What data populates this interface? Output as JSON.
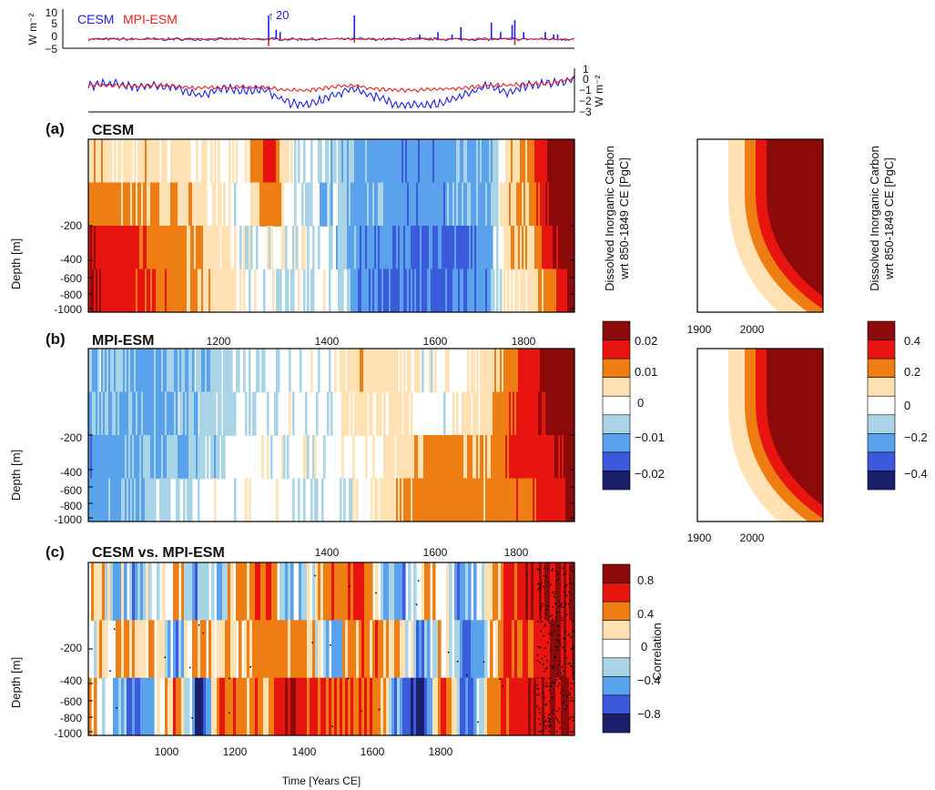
{
  "colors": {
    "cesm": "#1f1fe6",
    "mpi": "#e61f1f",
    "scale": [
      "#1a1f6b",
      "#3b5bdc",
      "#5aa2ec",
      "#a9d4e6",
      "#ffffff",
      "#ffe1b3",
      "#ee7d14",
      "#e8140f",
      "#8c0a0a"
    ]
  },
  "forcing_top": {
    "ylabel": "W m⁻²",
    "ticks": [
      "10",
      "5",
      "0",
      "−5"
    ],
    "legend": [
      "CESM",
      "MPI-ESM"
    ],
    "annotation": "20"
  },
  "forcing_bottom": {
    "ylabel": "W m⁻²",
    "ticks": [
      "1",
      "0",
      "−1",
      "−2",
      "−3"
    ]
  },
  "panels": [
    {
      "label": "(a)",
      "title": "CESM"
    },
    {
      "label": "(b)",
      "title": "MPI-ESM"
    },
    {
      "label": "(c)",
      "title": "CESM vs. MPI-ESM"
    }
  ],
  "depth_axis": {
    "label": "Depth [m]",
    "ticks": [
      "-200",
      "-400",
      "-600",
      "-800",
      "-1000"
    ]
  },
  "time_axis": {
    "label": "Time [Years CE]",
    "ticks_a": [
      "1200",
      "1400",
      "1600",
      "1800"
    ],
    "ticks_b": [
      "1400",
      "1600",
      "1800"
    ],
    "ticks_c": [
      "1000",
      "1200",
      "1400",
      "1600",
      "1800"
    ]
  },
  "future_axis": {
    "ticks": [
      "1900",
      "2000"
    ]
  },
  "colorbar_small": {
    "title_line1": "Dissolved Inorganic Carbon",
    "title_line2": "wrt 850-1849 CE [PgC]",
    "ticks": [
      "0.02",
      "0.01",
      "0",
      "−0.01",
      "−0.02"
    ]
  },
  "colorbar_large": {
    "title_line1": "Dissolved Inorganic Carbon",
    "title_line2": "wrt 850-1849 CE [PgC]",
    "ticks": [
      "0.4",
      "0.2",
      "0",
      "−0.2",
      "−0.4"
    ]
  },
  "colorbar_corr": {
    "title": "Correlation",
    "ticks": [
      "0.8",
      "0.4",
      "0",
      "−0.4",
      "−0.8"
    ]
  },
  "chart_data": [
    {
      "type": "line",
      "title": "",
      "xlabel": "",
      "ylabel": "W m⁻²",
      "xlim": [
        850,
        1950
      ],
      "ylim": [
        -5,
        10
      ],
      "series": [
        {
          "name": "CESM",
          "x": [
            1258,
            1275,
            1284,
            1452,
            1600,
            1641,
            1673,
            1693,
            1762,
            1783,
            1809,
            1815,
            1835,
            1884,
            1903,
            1912
          ],
          "values": [
            20,
            4,
            3,
            10,
            2,
            3,
            2,
            5,
            7,
            3,
            6,
            8,
            3,
            3,
            2,
            2
          ]
        },
        {
          "name": "MPI-ESM",
          "x": [
            1258,
            1452,
            1815
          ],
          "values": [
            -3,
            -1.5,
            -2.5
          ]
        }
      ]
    },
    {
      "type": "line",
      "title": "",
      "xlabel": "",
      "ylabel": "W m⁻²",
      "xlim": [
        850,
        1950
      ],
      "ylim": [
        -3,
        1
      ],
      "series": [
        {
          "name": "CESM",
          "x": [
            850,
            900,
            950,
            1000,
            1050,
            1100,
            1150,
            1200,
            1250,
            1300,
            1350,
            1400,
            1450,
            1500,
            1550,
            1600,
            1650,
            1700,
            1750,
            1800,
            1850,
            1900,
            1950
          ],
          "values": [
            -0.6,
            -0.3,
            -0.7,
            -0.6,
            -0.8,
            -1.5,
            -0.9,
            -1.0,
            -1.0,
            -2.2,
            -2.5,
            -1.6,
            -0.8,
            -1.7,
            -2.4,
            -2.5,
            -2.4,
            -1.5,
            -0.6,
            -1.2,
            -0.4,
            -0.3,
            0.1
          ]
        },
        {
          "name": "MPI-ESM",
          "x": [
            850,
            900,
            950,
            1000,
            1050,
            1100,
            1150,
            1200,
            1250,
            1300,
            1350,
            1400,
            1450,
            1500,
            1550,
            1600,
            1650,
            1700,
            1750,
            1800,
            1850,
            1900,
            1950
          ],
          "values": [
            -0.5,
            -0.5,
            -0.6,
            -0.5,
            -0.6,
            -0.8,
            -0.7,
            -0.7,
            -0.7,
            -1.0,
            -1.0,
            -0.7,
            -0.5,
            -0.9,
            -1.0,
            -1.0,
            -0.9,
            -0.8,
            -0.5,
            -0.5,
            -0.4,
            -0.3,
            0.2
          ]
        }
      ]
    },
    {
      "type": "heatmap",
      "title": "CESM",
      "xlabel": "",
      "ylabel": "Depth [m]",
      "xlim": [
        850,
        1950
      ],
      "ylim": [
        -1000,
        0
      ],
      "color_levels": [
        -0.02,
        -0.01,
        0,
        0.01,
        0.02
      ],
      "x": [
        850,
        1000,
        1100,
        1200,
        1260,
        1300,
        1400,
        1460,
        1550,
        1650,
        1750,
        1800,
        1850,
        1900,
        1950
      ],
      "depth": [
        -50,
        -200,
        -500,
        -900
      ],
      "values": [
        [
          0.005,
          0.004,
          0.002,
          0.001,
          0.02,
          0,
          -0.004,
          -0.006,
          -0.008,
          -0.008,
          -0.006,
          0.004,
          0.01,
          0.03,
          0.03
        ],
        [
          0.012,
          0.006,
          0.004,
          0,
          0.015,
          0,
          -0.004,
          -0.006,
          -0.007,
          -0.008,
          -0.006,
          0.006,
          0.008,
          0.03,
          0.03
        ],
        [
          0.025,
          0.012,
          0.006,
          0,
          0,
          0,
          -0.002,
          -0.008,
          -0.01,
          -0.012,
          -0.008,
          0.006,
          0.004,
          0.025,
          0.03
        ],
        [
          0.025,
          0.015,
          0.007,
          0,
          0,
          0,
          0,
          -0.008,
          -0.01,
          -0.012,
          -0.009,
          0.004,
          0.002,
          0.015,
          0.03
        ]
      ]
    },
    {
      "type": "heatmap",
      "title": "CESM",
      "xlabel": "",
      "ylabel": "",
      "xlim": [
        1850,
        2099
      ],
      "ylim": [
        -1000,
        0
      ],
      "color_levels": [
        -0.4,
        -0.2,
        0,
        0.2,
        0.4
      ],
      "note": "RCP era continuation, values increasing with time and decreasing with depth"
    },
    {
      "type": "heatmap",
      "title": "MPI-ESM",
      "xlabel": "",
      "ylabel": "Depth [m]",
      "xlim": [
        850,
        1950
      ],
      "ylim": [
        -1000,
        0
      ],
      "color_levels": [
        -0.02,
        -0.01,
        0,
        0.01,
        0.02
      ],
      "x": [
        850,
        1000,
        1100,
        1200,
        1300,
        1400,
        1460,
        1550,
        1600,
        1650,
        1750,
        1800,
        1850,
        1900,
        1950
      ],
      "depth": [
        -50,
        -200,
        -500,
        -900
      ],
      "values": [
        [
          -0.004,
          -0.006,
          -0.004,
          -0.002,
          0,
          0,
          0.006,
          0.002,
          0,
          0,
          0.002,
          0.012,
          0.02,
          0.03,
          0.03
        ],
        [
          -0.006,
          -0.006,
          -0.003,
          -0.002,
          0,
          0,
          0.004,
          0.002,
          0,
          0,
          0.004,
          0.015,
          0.02,
          0.03,
          0.03
        ],
        [
          -0.008,
          -0.005,
          -0.004,
          0,
          0,
          0,
          0,
          0.004,
          0.008,
          0.01,
          0.008,
          0.015,
          0.02,
          0.025,
          0.03
        ],
        [
          -0.008,
          -0.004,
          0,
          0,
          0,
          0,
          0,
          0.006,
          0.01,
          0.012,
          0.008,
          0.012,
          0.015,
          0.02,
          0.03
        ]
      ]
    },
    {
      "type": "heatmap",
      "title": "MPI-ESM",
      "xlabel": "",
      "ylabel": "",
      "xlim": [
        1850,
        2099
      ],
      "ylim": [
        -1000,
        0
      ],
      "color_levels": [
        -0.4,
        -0.2,
        0,
        0.2,
        0.4
      ]
    },
    {
      "type": "heatmap",
      "title": "CESM vs. MPI-ESM",
      "xlabel": "Time [Years CE]",
      "ylabel": "Depth [m]",
      "xlim": [
        850,
        1950
      ],
      "ylim": [
        -1000,
        0
      ],
      "color_levels": [
        -0.8,
        -0.4,
        0,
        0.4,
        0.8
      ],
      "x": [
        850,
        950,
        1050,
        1100,
        1150,
        1250,
        1300,
        1350,
        1400,
        1450,
        1500,
        1550,
        1600,
        1650,
        1700,
        1750,
        1800,
        1850,
        1900,
        1950
      ],
      "depth": [
        -50,
        -300,
        -700
      ],
      "values": [
        [
          0.2,
          -0.2,
          0.3,
          -0.4,
          0,
          0.6,
          -0.3,
          0,
          0.4,
          0.8,
          0.2,
          -0.4,
          0.2,
          0,
          -0.3,
          0,
          0.8,
          0.9,
          1.0,
          1.0
        ],
        [
          0,
          0.4,
          -0.3,
          0.3,
          0.1,
          0.4,
          0.5,
          0.2,
          -0.3,
          0.5,
          0.4,
          0.3,
          -0.4,
          0.2,
          -0.5,
          0.1,
          0.6,
          0.6,
          1.0,
          1.0
        ],
        [
          0.3,
          -0.6,
          0.5,
          -0.9,
          0.7,
          0.3,
          0.9,
          0.6,
          0.6,
          0.7,
          0.6,
          -0.4,
          -0.9,
          0.7,
          -0.5,
          0.2,
          0.8,
          0.9,
          1.0,
          1.0
        ]
      ]
    }
  ]
}
